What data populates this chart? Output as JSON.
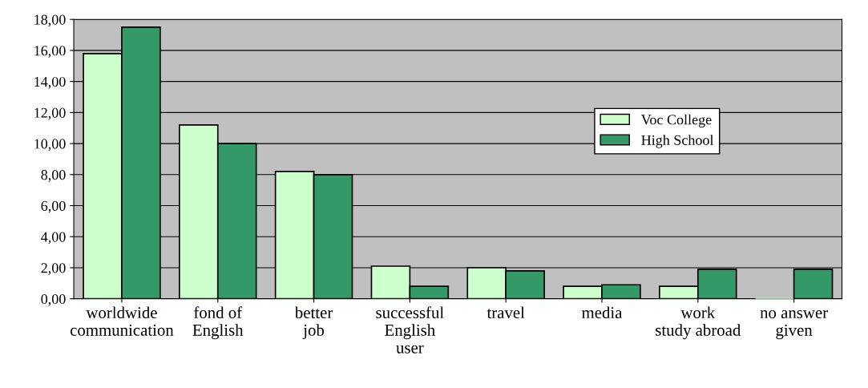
{
  "chart_data": {
    "type": "bar",
    "categories": [
      "worldwide\ncommunication",
      "fond of\nEnglish",
      "better\njob",
      "successful\nEnglish\nuser",
      "travel",
      "media",
      "work\nstudy abroad",
      "no answer\ngiven"
    ],
    "series": [
      {
        "name": "Voc College",
        "color": "#ccffcc",
        "values": [
          15.8,
          11.2,
          8.2,
          2.1,
          2.0,
          0.8,
          0.8,
          0.0
        ]
      },
      {
        "name": "High School",
        "color": "#339966",
        "values": [
          17.5,
          10.0,
          8.0,
          0.8,
          1.8,
          0.9,
          1.9,
          1.9
        ]
      }
    ],
    "ylim": [
      0,
      18
    ],
    "yticks": [
      {
        "value": 0,
        "label": "0,00"
      },
      {
        "value": 2,
        "label": "2,00"
      },
      {
        "value": 4,
        "label": "4,00"
      },
      {
        "value": 6,
        "label": "6,00"
      },
      {
        "value": 8,
        "label": "8,00"
      },
      {
        "value": 10,
        "label": "10,00"
      },
      {
        "value": 12,
        "label": "12,00"
      },
      {
        "value": 14,
        "label": "14,00"
      },
      {
        "value": 16,
        "label": "16,00"
      },
      {
        "value": 18,
        "label": "18,00"
      }
    ],
    "grid": "y",
    "legend": "right"
  }
}
